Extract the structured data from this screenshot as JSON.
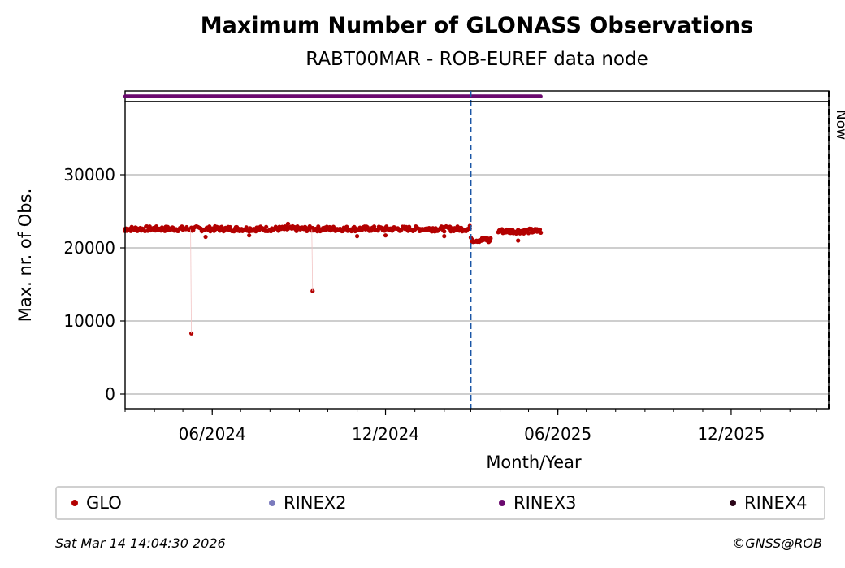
{
  "chart_data": {
    "type": "scatter",
    "title": "Maximum Number of GLONASS Observations",
    "subtitle": "RABT00MAR - ROB-EUREF data node",
    "xlabel": "Month/Year",
    "ylabel": "Max. nr. of Obs.",
    "x_range": [
      "2024-03-01",
      "2026-03-14"
    ],
    "ylim": [
      -2000,
      40000
    ],
    "yticks": [
      0,
      10000,
      20000,
      30000
    ],
    "ytick_labels": [
      "0",
      "10000",
      "20000",
      "30000"
    ],
    "xtick_labels": [
      "06/2024",
      "12/2024",
      "06/2025",
      "12/2025"
    ],
    "xtick_dates": [
      "2024-06-01",
      "2024-12-01",
      "2025-06-01",
      "2025-12-01"
    ],
    "grid": "horizontal",
    "series": [
      {
        "name": "GLO",
        "color": "#b30000",
        "x_start": "2024-03-01",
        "x_end": "2025-05-14",
        "typical_value": 22600,
        "points": [
          {
            "x": "2024-03-01",
            "y": 22300
          },
          {
            "x": "2024-03-15",
            "y": 22600
          },
          {
            "x": "2024-04-01",
            "y": 22400
          },
          {
            "x": "2024-04-20",
            "y": 22800
          },
          {
            "x": "2024-05-10",
            "y": 8300
          },
          {
            "x": "2024-05-25",
            "y": 21500
          },
          {
            "x": "2024-06-15",
            "y": 22600
          },
          {
            "x": "2024-07-10",
            "y": 21700
          },
          {
            "x": "2024-08-20",
            "y": 23300
          },
          {
            "x": "2024-09-15",
            "y": 14100
          },
          {
            "x": "2024-11-01",
            "y": 21600
          },
          {
            "x": "2024-12-01",
            "y": 21700
          },
          {
            "x": "2025-01-20",
            "y": 22700
          },
          {
            "x": "2025-02-01",
            "y": 21600
          },
          {
            "x": "2025-02-28",
            "y": 23000
          },
          {
            "x": "2025-03-02",
            "y": 21200
          },
          {
            "x": "2025-03-20",
            "y": 20800
          },
          {
            "x": "2025-04-01",
            "y": 22500
          },
          {
            "x": "2025-04-20",
            "y": 21000
          },
          {
            "x": "2025-05-10",
            "y": 22200
          }
        ]
      },
      {
        "name": "RINEX2",
        "color": "#7b7bbd"
      },
      {
        "name": "RINEX3",
        "color": "#6a0a6e",
        "x_start": "2024-03-01",
        "x_end": "2025-05-14"
      },
      {
        "name": "RINEX4",
        "color": "#2a0418"
      }
    ],
    "vlines": [
      {
        "x": "2025-03-01",
        "color": "#1a56a6",
        "style": "dashed"
      },
      {
        "x": "2026-03-14",
        "color": "#000000",
        "style": "dashed",
        "label": "Now"
      }
    ]
  },
  "legend_items": [
    {
      "label": "GLO",
      "color": "#b30000"
    },
    {
      "label": "RINEX2",
      "color": "#7b7bbd"
    },
    {
      "label": "RINEX3",
      "color": "#6a0a6e"
    },
    {
      "label": "RINEX4",
      "color": "#2a0418"
    }
  ],
  "footer": {
    "timestamp": "Sat Mar 14 14:04:30 2026",
    "credit": "©GNSS@ROB"
  }
}
